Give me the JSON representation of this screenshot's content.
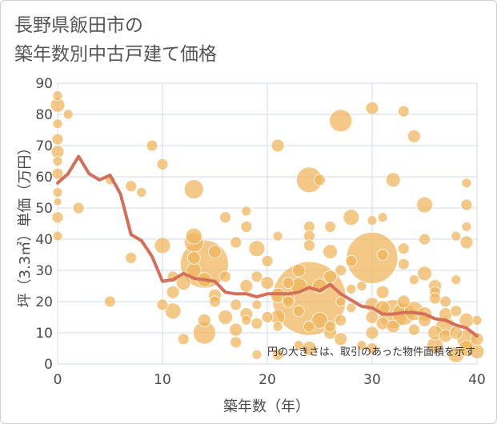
{
  "title": "長野県飯田市の\n築年数別中古戸建て価格",
  "chart_data": {
    "type": "scatter",
    "xlabel": "築年数（年）",
    "ylabel": "坪（3.3㎡）単価（万円）",
    "xlim": [
      0,
      40
    ],
    "ylim": [
      0,
      90
    ],
    "xticks": [
      0,
      10,
      20,
      30,
      40
    ],
    "yticks": [
      0,
      10,
      20,
      30,
      40,
      50,
      60,
      70,
      80,
      90
    ],
    "annotation": "円の大きさは、取引のあった物件面積を示す",
    "grid": true,
    "colors": {
      "bubble": "#f0b45a",
      "line": "#d4705a",
      "grid": "#d0d8e8"
    },
    "average_line": {
      "x": [
        0,
        1,
        2,
        3,
        4,
        5,
        6,
        7,
        8,
        9,
        10,
        11,
        12,
        13,
        14,
        15,
        16,
        17,
        18,
        19,
        20,
        21,
        22,
        23,
        24,
        25,
        26,
        27,
        28,
        29,
        30,
        31,
        32,
        33,
        34,
        35,
        36,
        37,
        38,
        39,
        40
      ],
      "y": [
        58,
        61,
        66.5,
        61,
        59,
        60.5,
        54.5,
        41.5,
        39.5,
        34.5,
        26.5,
        27,
        29,
        27.5,
        27,
        26.5,
        23,
        22.5,
        22.5,
        21.5,
        22.5,
        22.5,
        22.5,
        23,
        24.5,
        23.5,
        25.5,
        22.5,
        20.5,
        18.5,
        18,
        16,
        16,
        16.5,
        16.5,
        16,
        14.5,
        14,
        12.5,
        11.5,
        9
      ]
    },
    "points": [
      {
        "x": 0,
        "y": 86,
        "s": 6
      },
      {
        "x": 0,
        "y": 83,
        "s": 9
      },
      {
        "x": 0,
        "y": 77,
        "s": 6
      },
      {
        "x": 0,
        "y": 72,
        "s": 7
      },
      {
        "x": 0,
        "y": 68,
        "s": 8
      },
      {
        "x": 0,
        "y": 65,
        "s": 6
      },
      {
        "x": 0,
        "y": 61,
        "s": 7
      },
      {
        "x": 0,
        "y": 55,
        "s": 6
      },
      {
        "x": 0,
        "y": 52,
        "s": 5
      },
      {
        "x": 0,
        "y": 47,
        "s": 7
      },
      {
        "x": 0,
        "y": 41,
        "s": 6
      },
      {
        "x": 1,
        "y": 80,
        "s": 6
      },
      {
        "x": 2,
        "y": 50,
        "s": 7
      },
      {
        "x": 5,
        "y": 20,
        "s": 7
      },
      {
        "x": 5,
        "y": 59,
        "s": 6
      },
      {
        "x": 7,
        "y": 57,
        "s": 7
      },
      {
        "x": 7,
        "y": 34,
        "s": 7
      },
      {
        "x": 8,
        "y": 55,
        "s": 6
      },
      {
        "x": 9,
        "y": 70,
        "s": 7
      },
      {
        "x": 10,
        "y": 64,
        "s": 7
      },
      {
        "x": 10,
        "y": 38,
        "s": 10
      },
      {
        "x": 10,
        "y": 19,
        "s": 7
      },
      {
        "x": 11,
        "y": 23,
        "s": 8
      },
      {
        "x": 11,
        "y": 17,
        "s": 10
      },
      {
        "x": 11,
        "y": 28,
        "s": 7
      },
      {
        "x": 12,
        "y": 8,
        "s": 7
      },
      {
        "x": 12,
        "y": 26,
        "s": 9
      },
      {
        "x": 13,
        "y": 56,
        "s": 12
      },
      {
        "x": 13,
        "y": 41,
        "s": 10
      },
      {
        "x": 13,
        "y": 39,
        "s": 12
      },
      {
        "x": 13,
        "y": 34,
        "s": 8
      },
      {
        "x": 13,
        "y": 30,
        "s": 9
      },
      {
        "x": 14,
        "y": 32,
        "s": 30
      },
      {
        "x": 14,
        "y": 10,
        "s": 14
      },
      {
        "x": 14,
        "y": 14,
        "s": 8
      },
      {
        "x": 14,
        "y": 27,
        "s": 9
      },
      {
        "x": 15,
        "y": 36,
        "s": 8
      },
      {
        "x": 15,
        "y": 22,
        "s": 8
      },
      {
        "x": 15,
        "y": 20,
        "s": 7
      },
      {
        "x": 16,
        "y": 47,
        "s": 7
      },
      {
        "x": 16,
        "y": 28,
        "s": 7
      },
      {
        "x": 16,
        "y": 15,
        "s": 9
      },
      {
        "x": 17,
        "y": 39,
        "s": 7
      },
      {
        "x": 17,
        "y": 11,
        "s": 8
      },
      {
        "x": 17,
        "y": 7,
        "s": 7
      },
      {
        "x": 17,
        "y": 19,
        "s": 7
      },
      {
        "x": 18,
        "y": 49,
        "s": 6
      },
      {
        "x": 18,
        "y": 44,
        "s": 7
      },
      {
        "x": 18,
        "y": 25,
        "s": 8
      },
      {
        "x": 18,
        "y": 16,
        "s": 8
      },
      {
        "x": 18,
        "y": 14,
        "s": 6
      },
      {
        "x": 19,
        "y": 37,
        "s": 10
      },
      {
        "x": 19,
        "y": 28,
        "s": 7
      },
      {
        "x": 19,
        "y": 19,
        "s": 6
      },
      {
        "x": 19,
        "y": 13,
        "s": 7
      },
      {
        "x": 19,
        "y": 3,
        "s": 6
      },
      {
        "x": 20,
        "y": 33,
        "s": 7
      },
      {
        "x": 20,
        "y": 26,
        "s": 8
      },
      {
        "x": 20,
        "y": 15,
        "s": 7
      },
      {
        "x": 21,
        "y": 70,
        "s": 8
      },
      {
        "x": 21,
        "y": 41,
        "s": 6
      },
      {
        "x": 21,
        "y": 22,
        "s": 9
      },
      {
        "x": 21,
        "y": 15,
        "s": 9
      },
      {
        "x": 21,
        "y": 12,
        "s": 6
      },
      {
        "x": 21,
        "y": 3,
        "s": 7
      },
      {
        "x": 22,
        "y": 26,
        "s": 7
      },
      {
        "x": 22,
        "y": 21,
        "s": 8
      },
      {
        "x": 22,
        "y": 20,
        "s": 7
      },
      {
        "x": 23,
        "y": 30,
        "s": 8
      },
      {
        "x": 23,
        "y": 25,
        "s": 10
      },
      {
        "x": 23,
        "y": 17,
        "s": 7
      },
      {
        "x": 23,
        "y": 6,
        "s": 6
      },
      {
        "x": 24,
        "y": 59,
        "s": 16
      },
      {
        "x": 24,
        "y": 44,
        "s": 7
      },
      {
        "x": 24,
        "y": 41,
        "s": 7
      },
      {
        "x": 24,
        "y": 38,
        "s": 7
      },
      {
        "x": 24,
        "y": 21,
        "s": 46
      },
      {
        "x": 24,
        "y": 12,
        "s": 7
      },
      {
        "x": 24,
        "y": 5,
        "s": 9
      },
      {
        "x": 25,
        "y": 59,
        "s": 7
      },
      {
        "x": 25,
        "y": 25,
        "s": 9
      },
      {
        "x": 25,
        "y": 14,
        "s": 10
      },
      {
        "x": 26,
        "y": 44,
        "s": 7
      },
      {
        "x": 26,
        "y": 36,
        "s": 9
      },
      {
        "x": 26,
        "y": 28,
        "s": 8
      },
      {
        "x": 26,
        "y": 12,
        "s": 7
      },
      {
        "x": 26,
        "y": 10,
        "s": 8
      },
      {
        "x": 27,
        "y": 78,
        "s": 14
      },
      {
        "x": 27,
        "y": 30,
        "s": 7
      },
      {
        "x": 27,
        "y": 20,
        "s": 6
      },
      {
        "x": 27,
        "y": 14,
        "s": 7
      },
      {
        "x": 27,
        "y": 8,
        "s": 8
      },
      {
        "x": 28,
        "y": 47,
        "s": 10
      },
      {
        "x": 28,
        "y": 33,
        "s": 7
      },
      {
        "x": 28,
        "y": 24,
        "s": 6
      },
      {
        "x": 28,
        "y": 18,
        "s": 6
      },
      {
        "x": 29,
        "y": 6,
        "s": 6
      },
      {
        "x": 29,
        "y": 25,
        "s": 6
      },
      {
        "x": 30,
        "y": 82,
        "s": 8
      },
      {
        "x": 30,
        "y": 46,
        "s": 6
      },
      {
        "x": 30,
        "y": 34,
        "s": 32
      },
      {
        "x": 30,
        "y": 19,
        "s": 9
      },
      {
        "x": 30,
        "y": 15,
        "s": 8
      },
      {
        "x": 30,
        "y": 10,
        "s": 8
      },
      {
        "x": 30,
        "y": 5,
        "s": 7
      },
      {
        "x": 31,
        "y": 47,
        "s": 6
      },
      {
        "x": 31,
        "y": 35,
        "s": 7
      },
      {
        "x": 31,
        "y": 23,
        "s": 8
      },
      {
        "x": 31,
        "y": 18,
        "s": 9
      },
      {
        "x": 31,
        "y": 13,
        "s": 8
      },
      {
        "x": 32,
        "y": 59,
        "s": 9
      },
      {
        "x": 32,
        "y": 16,
        "s": 18
      },
      {
        "x": 32,
        "y": 12,
        "s": 8
      },
      {
        "x": 33,
        "y": 81,
        "s": 7
      },
      {
        "x": 33,
        "y": 37,
        "s": 7
      },
      {
        "x": 33,
        "y": 32,
        "s": 7
      },
      {
        "x": 33,
        "y": 20,
        "s": 8
      },
      {
        "x": 33,
        "y": 16,
        "s": 14
      },
      {
        "x": 34,
        "y": 73,
        "s": 8
      },
      {
        "x": 34,
        "y": 27,
        "s": 6
      },
      {
        "x": 34,
        "y": 17,
        "s": 12
      },
      {
        "x": 34,
        "y": 11,
        "s": 7
      },
      {
        "x": 35,
        "y": 51,
        "s": 10
      },
      {
        "x": 35,
        "y": 40,
        "s": 7
      },
      {
        "x": 35,
        "y": 29,
        "s": 9
      },
      {
        "x": 35,
        "y": 16,
        "s": 9
      },
      {
        "x": 35,
        "y": 14,
        "s": 8
      },
      {
        "x": 36,
        "y": 25,
        "s": 8
      },
      {
        "x": 36,
        "y": 23,
        "s": 7
      },
      {
        "x": 36,
        "y": 21,
        "s": 7
      },
      {
        "x": 36,
        "y": 10,
        "s": 9
      },
      {
        "x": 36,
        "y": 6,
        "s": 10
      },
      {
        "x": 37,
        "y": 20,
        "s": 7
      },
      {
        "x": 37,
        "y": 16,
        "s": 8
      },
      {
        "x": 37,
        "y": 12,
        "s": 12
      },
      {
        "x": 37,
        "y": 9,
        "s": 8
      },
      {
        "x": 38,
        "y": 41,
        "s": 6
      },
      {
        "x": 38,
        "y": 27,
        "s": 6
      },
      {
        "x": 38,
        "y": 17,
        "s": 7
      },
      {
        "x": 38,
        "y": 10,
        "s": 8
      },
      {
        "x": 38,
        "y": 3,
        "s": 10
      },
      {
        "x": 39,
        "y": 58,
        "s": 6
      },
      {
        "x": 39,
        "y": 51,
        "s": 7
      },
      {
        "x": 39,
        "y": 44,
        "s": 6
      },
      {
        "x": 39,
        "y": 39,
        "s": 8
      },
      {
        "x": 39,
        "y": 14,
        "s": 9
      },
      {
        "x": 39,
        "y": 8,
        "s": 12
      },
      {
        "x": 39,
        "y": 5,
        "s": 10
      },
      {
        "x": 40,
        "y": 14,
        "s": 6
      },
      {
        "x": 40,
        "y": 8,
        "s": 8
      },
      {
        "x": 40,
        "y": 4,
        "s": 9
      }
    ]
  }
}
